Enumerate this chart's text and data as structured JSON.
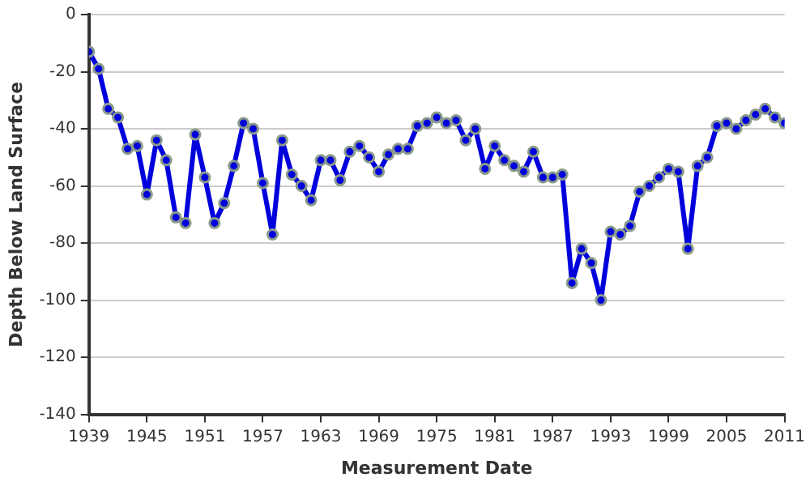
{
  "chart_data": {
    "type": "line",
    "xlabel": "Measurement Date",
    "ylabel": "Depth Below Land Surface",
    "x": [
      1939,
      1940,
      1941,
      1942,
      1943,
      1944,
      1945,
      1946,
      1947,
      1948,
      1949,
      1950,
      1951,
      1952,
      1953,
      1954,
      1955,
      1956,
      1957,
      1958,
      1959,
      1960,
      1961,
      1962,
      1963,
      1964,
      1965,
      1966,
      1967,
      1968,
      1969,
      1970,
      1971,
      1972,
      1973,
      1974,
      1975,
      1976,
      1977,
      1978,
      1979,
      1980,
      1981,
      1982,
      1983,
      1984,
      1985,
      1986,
      1987,
      1988,
      1989,
      1990,
      1991,
      1992,
      1993,
      1994,
      1995,
      1996,
      1997,
      1998,
      1999,
      2000,
      2001,
      2002,
      2003,
      2004,
      2005,
      2006,
      2007,
      2008,
      2009,
      2010,
      2011
    ],
    "series": [
      {
        "color": "#0000dd",
        "values": [
          -13,
          -19,
          -33,
          -36,
          -47,
          -46,
          -63,
          -44,
          -51,
          -71,
          -73,
          -42,
          -57,
          -73,
          -66,
          -53,
          -38,
          -40,
          -59,
          -77,
          -44,
          -56,
          -60,
          -65,
          -51,
          -51,
          -58,
          -48,
          -46,
          -50,
          -55,
          -49,
          -47,
          -47,
          -39,
          -38,
          -36,
          -38,
          -37,
          -44,
          -40,
          -54,
          -46,
          -51,
          -53,
          -55,
          -48,
          -57,
          -57,
          -56,
          -94,
          -82,
          -87,
          -100,
          -76,
          -77,
          -74,
          -62,
          -60,
          -57,
          -54,
          -55,
          -82,
          -53,
          -50,
          -39,
          -38,
          -40,
          -37,
          -35,
          -33,
          -36,
          -38
        ]
      }
    ],
    "xlim": [
      1939,
      2011
    ],
    "xticks": [
      1939,
      1945,
      1951,
      1957,
      1963,
      1969,
      1975,
      1981,
      1987,
      1993,
      1999,
      2005,
      2011
    ],
    "ylim": [
      -140,
      0
    ],
    "yticks": [
      -140,
      -120,
      -100,
      -80,
      -60,
      -40,
      -20,
      0
    ],
    "grid": "y",
    "legend": false,
    "marker": "circle",
    "line_style": "solid"
  }
}
